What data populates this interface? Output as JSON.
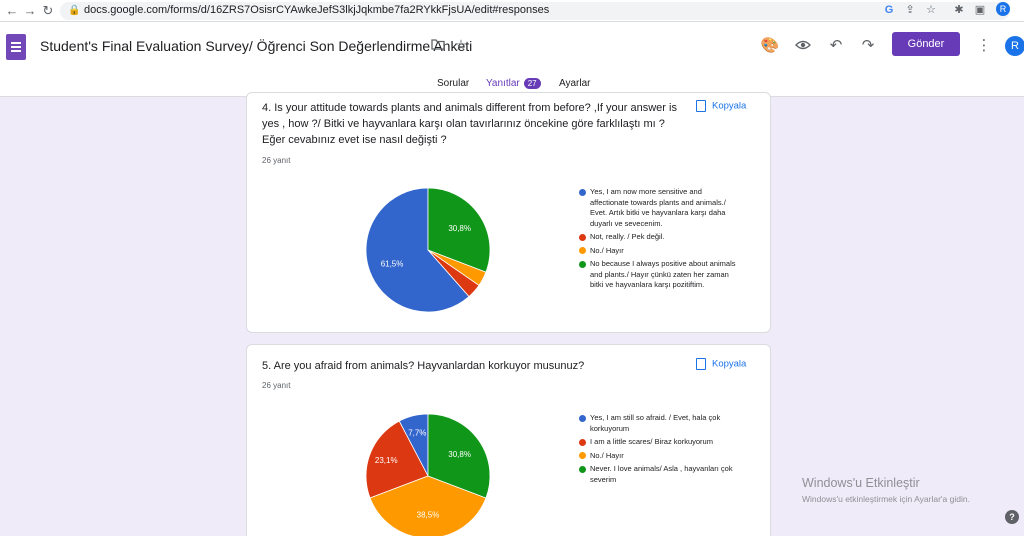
{
  "browser": {
    "url": "docs.google.com/forms/d/16ZRS7OsisrCYAwkeJefS3lkjJqkmbe7fa2RYkkFjsUA/edit#responses",
    "profile_initial": "R"
  },
  "header": {
    "form_title": "Student's Final Evaluation Survey/ Öğrenci Son Değerlendirme Anketi",
    "send_label": "Gönder",
    "avatar_initial": "R"
  },
  "tabs": [
    {
      "label": "Sorular"
    },
    {
      "label": "Yanıtlar",
      "badge": "27",
      "active": true
    },
    {
      "label": "Ayarlar"
    }
  ],
  "questions": [
    {
      "title": "4. Is your attitude towards plants and animals different from before? ,If your answer is yes , how ?/ Bitki ve hayvanlara karşı olan tavırlarınız öncekine göre farklılaştı mı ? Eğer cevabınız evet ise nasıl değişti ?",
      "count": "26 yanıt",
      "copy_label": "Kopyala",
      "legend": [
        "Yes, I am now more sensitive and affectionate towards plants and animals./ Evet. Artık bitki ve hayvanlara karşı daha duyarlı ve sevecenim.",
        "Not, really. / Pek değil.",
        "No./ Hayır",
        "No because I always positive about animals and plants./ Hayır çünkü zaten her zaman bitki ve hayvanlara karşı pozitiftim."
      ],
      "slice_labels": [
        "61,5%",
        "",
        "",
        "30,8%"
      ]
    },
    {
      "title": "5. Are you afraid from animals? Hayvanlardan korkuyor musunuz?",
      "count": "26 yanıt",
      "copy_label": "Kopyala",
      "legend": [
        "Yes, I am still so afraid. / Evet, hala çok korkuyorum",
        "I am a little scares/ Biraz korkuyorum",
        "No./ Hayır",
        "Never. I love animals/ Asla , hayvanları çok severim"
      ],
      "slice_labels": [
        "7,7%",
        "23,1%",
        "38,5%",
        "30,8%"
      ]
    }
  ],
  "series_colors": [
    "#3366cc",
    "#dc3912",
    "#ff9900",
    "#109618"
  ],
  "chart_data": [
    {
      "type": "pie",
      "labels": [
        "Yes, I am now more sensitive and affectionate towards plants and animals./ Evet. Artık bitki ve hayvanlara karşı daha duyarlı ve sevecenim.",
        "Not, really. / Pek değil.",
        "No./ Hayır",
        "No because I always positive about animals and plants./ Hayır çünkü zaten her zaman bitki ve hayvanlara karşı pozitiftim."
      ],
      "values": [
        61.5,
        3.85,
        3.85,
        30.8
      ]
    },
    {
      "type": "pie",
      "labels": [
        "Yes, I am still so afraid. / Evet, hala çok korkuyorum",
        "I am a little scares/ Biraz korkuyorum",
        "No./ Hayır",
        "Never. I love animals/ Asla , hayvanları çok severim"
      ],
      "values": [
        7.7,
        23.1,
        38.5,
        30.8
      ]
    }
  ],
  "watermark": {
    "line1": "Windows'u Etkinleştir",
    "line2": "Windows'u etkinleştirmek için Ayarlar'a gidin."
  }
}
